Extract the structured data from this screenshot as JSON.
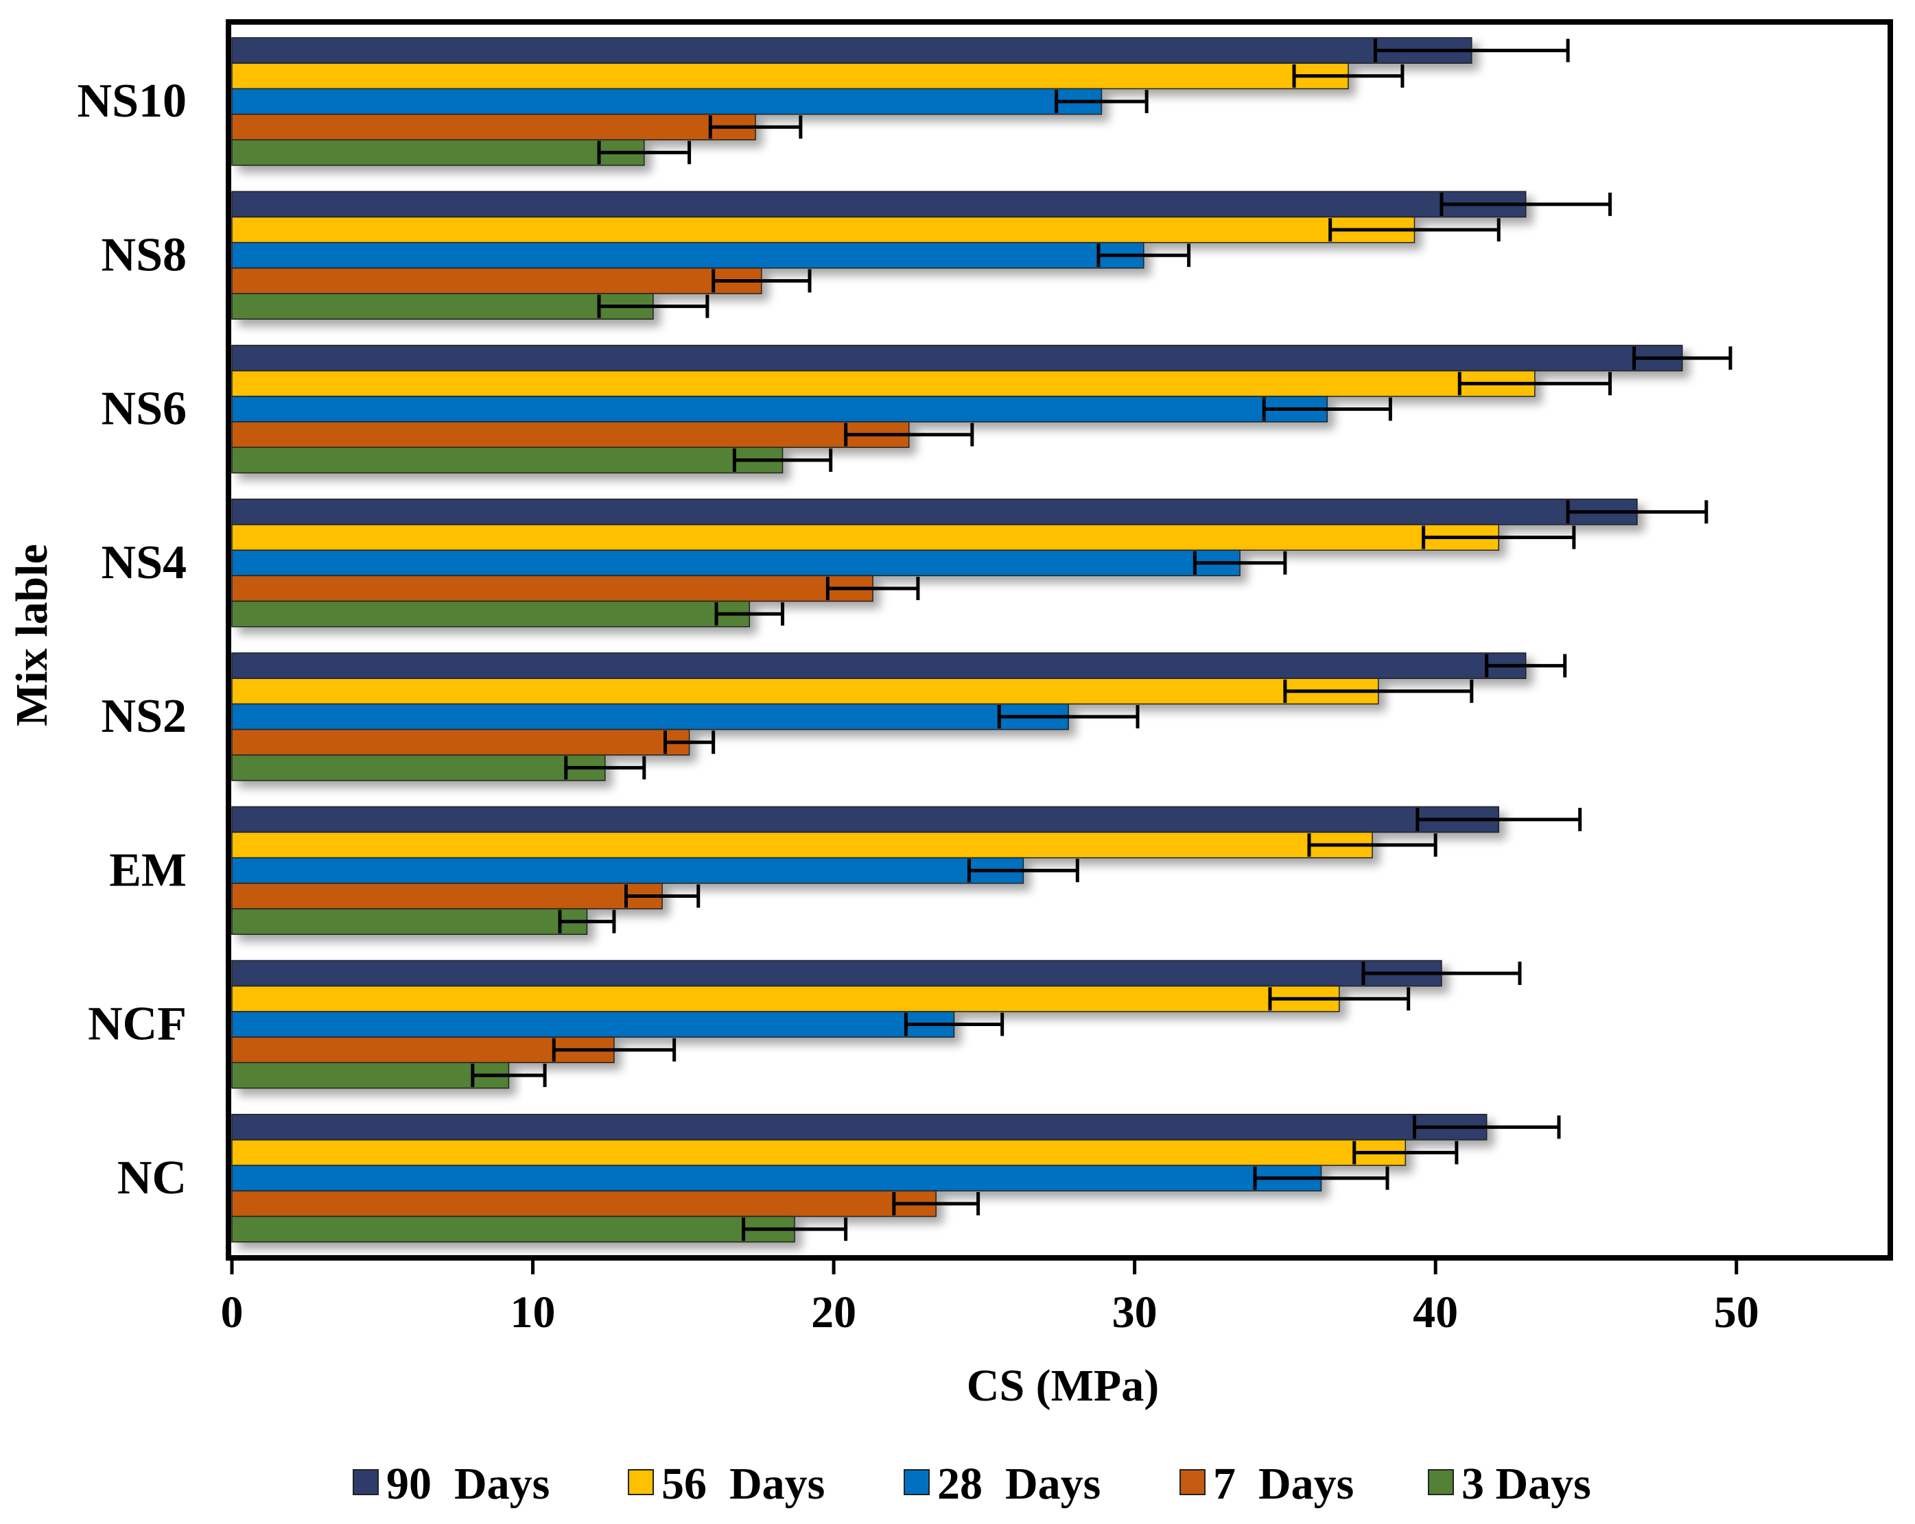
{
  "chart_data": {
    "type": "bar",
    "orientation": "horizontal",
    "title": "",
    "xlabel": "CS (MPa)",
    "ylabel": "Mix lable",
    "xlim": [
      0,
      55
    ],
    "xticks": [
      0,
      10,
      20,
      30,
      40,
      50
    ],
    "tick_labels": [
      "0",
      "10",
      "20",
      "30",
      "40",
      "50"
    ],
    "grid": false,
    "legend_position": "bottom",
    "categories": [
      "NS10",
      "NS8",
      "NS6",
      "NS4",
      "NS2",
      "EM",
      "NCF",
      "NC"
    ],
    "series": [
      {
        "name": "90  Days",
        "legend_label": "90  Days",
        "color": "#2E3C6B",
        "values": [
          41.2,
          43.0,
          48.2,
          46.7,
          43.0,
          42.1,
          40.2,
          41.7
        ],
        "errors": [
          3.2,
          2.8,
          1.6,
          2.3,
          1.3,
          2.7,
          2.6,
          2.4
        ]
      },
      {
        "name": "56  Days",
        "legend_label": "56  Days",
        "color": "#FFC000",
        "values": [
          37.1,
          39.3,
          43.3,
          42.1,
          38.1,
          37.9,
          36.8,
          39.0
        ],
        "errors": [
          1.8,
          2.8,
          2.5,
          2.5,
          3.1,
          2.1,
          2.3,
          1.7
        ]
      },
      {
        "name": "28  Days",
        "legend_label": "28  Days",
        "color": "#0070C0",
        "values": [
          28.9,
          30.3,
          36.4,
          33.5,
          27.8,
          26.3,
          24.0,
          36.2
        ],
        "errors": [
          1.5,
          1.5,
          2.1,
          1.5,
          2.3,
          1.8,
          1.6,
          2.2
        ]
      },
      {
        "name": "7  Days",
        "legend_label": "7  Days",
        "color": "#C55A11",
        "values": [
          17.4,
          17.6,
          22.5,
          21.3,
          15.2,
          14.3,
          12.7,
          23.4
        ],
        "errors": [
          1.5,
          1.6,
          2.1,
          1.5,
          0.8,
          1.2,
          2.0,
          1.4
        ]
      },
      {
        "name": "3 Days",
        "legend_label": "3 Days",
        "color": "#538135",
        "values": [
          13.7,
          14.0,
          18.3,
          17.2,
          12.4,
          11.8,
          9.2,
          18.7
        ],
        "errors": [
          1.5,
          1.8,
          1.6,
          1.1,
          1.3,
          0.9,
          1.2,
          1.7
        ]
      }
    ]
  }
}
